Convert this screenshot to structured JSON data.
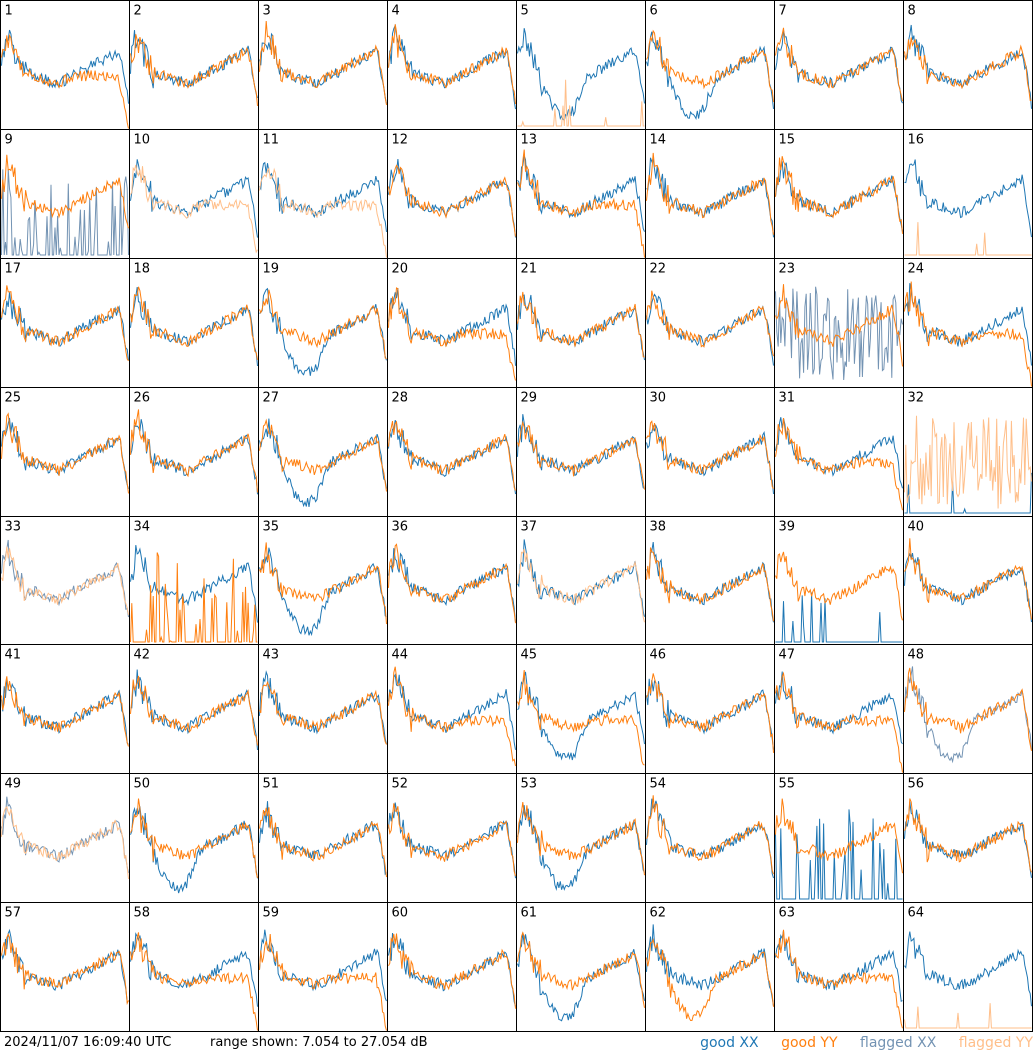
{
  "footer": {
    "timestamp": "2024/11/07 16:09:40 UTC",
    "range_text": "range shown: 7.054 to 27.054 dB"
  },
  "legend": {
    "good_xx": "good XX",
    "good_yy": "good YY",
    "flagged_xx": "flagged XX",
    "flagged_yy": "flagged YY"
  },
  "colors": {
    "good_xx": "#1f77b4",
    "good_yy": "#ff7f0e",
    "flagged_xx": "#7393b3",
    "flagged_yy": "#ffbf8a"
  },
  "chart_data": {
    "type": "line",
    "grid": {
      "rows": 8,
      "cols": 8
    },
    "y_range_db": [
      7.054,
      27.054
    ],
    "panels": [
      {
        "label": "1",
        "xx": "good",
        "yy": "good",
        "xx_shape": "normal",
        "yy_shape": "rolloff"
      },
      {
        "label": "2",
        "xx": "good",
        "yy": "good",
        "xx_shape": "normal",
        "yy_shape": "normal"
      },
      {
        "label": "3",
        "xx": "good",
        "yy": "good",
        "xx_shape": "normal",
        "yy_shape": "normal"
      },
      {
        "label": "4",
        "xx": "good",
        "yy": "good",
        "xx_shape": "normal",
        "yy_shape": "normal"
      },
      {
        "label": "5",
        "xx": "good",
        "yy": "flagged",
        "xx_shape": "dip",
        "yy_shape": "flat"
      },
      {
        "label": "6",
        "xx": "good",
        "yy": "good",
        "xx_shape": "dip",
        "yy_shape": "normal"
      },
      {
        "label": "7",
        "xx": "good",
        "yy": "good",
        "xx_shape": "normal",
        "yy_shape": "normal"
      },
      {
        "label": "8",
        "xx": "good",
        "yy": "good",
        "xx_shape": "normal",
        "yy_shape": "normal"
      },
      {
        "label": "9",
        "xx": "flagged",
        "yy": "good",
        "xx_shape": "spiky",
        "yy_shape": "normal"
      },
      {
        "label": "10",
        "xx": "good",
        "yy": "flagged",
        "xx_shape": "normal",
        "yy_shape": "rolloff"
      },
      {
        "label": "11",
        "xx": "good",
        "yy": "flagged",
        "xx_shape": "normal",
        "yy_shape": "rolloff"
      },
      {
        "label": "12",
        "xx": "good",
        "yy": "good",
        "xx_shape": "normal",
        "yy_shape": "normal"
      },
      {
        "label": "13",
        "xx": "good",
        "yy": "good",
        "xx_shape": "normal",
        "yy_shape": "rolloff"
      },
      {
        "label": "14",
        "xx": "good",
        "yy": "good",
        "xx_shape": "normal",
        "yy_shape": "normal"
      },
      {
        "label": "15",
        "xx": "good",
        "yy": "good",
        "xx_shape": "normal",
        "yy_shape": "normal"
      },
      {
        "label": "16",
        "xx": "good",
        "yy": "flagged",
        "xx_shape": "normal",
        "yy_shape": "flat"
      },
      {
        "label": "17",
        "xx": "good",
        "yy": "good",
        "xx_shape": "normal",
        "yy_shape": "normal"
      },
      {
        "label": "18",
        "xx": "good",
        "yy": "good",
        "xx_shape": "normal",
        "yy_shape": "normal"
      },
      {
        "label": "19",
        "xx": "good",
        "yy": "good",
        "xx_shape": "dip",
        "yy_shape": "normal"
      },
      {
        "label": "20",
        "xx": "good",
        "yy": "good",
        "xx_shape": "normal",
        "yy_shape": "rolloff"
      },
      {
        "label": "21",
        "xx": "good",
        "yy": "good",
        "xx_shape": "normal",
        "yy_shape": "normal"
      },
      {
        "label": "22",
        "xx": "good",
        "yy": "good",
        "xx_shape": "normal",
        "yy_shape": "normal"
      },
      {
        "label": "23",
        "xx": "flagged",
        "yy": "good",
        "xx_shape": "noise",
        "yy_shape": "normal"
      },
      {
        "label": "24",
        "xx": "good",
        "yy": "good",
        "xx_shape": "normal",
        "yy_shape": "rolloff"
      },
      {
        "label": "25",
        "xx": "good",
        "yy": "good",
        "xx_shape": "normal",
        "yy_shape": "normal"
      },
      {
        "label": "26",
        "xx": "good",
        "yy": "good",
        "xx_shape": "normal",
        "yy_shape": "normal"
      },
      {
        "label": "27",
        "xx": "good",
        "yy": "good",
        "xx_shape": "dip",
        "yy_shape": "normal"
      },
      {
        "label": "28",
        "xx": "good",
        "yy": "good",
        "xx_shape": "normal",
        "yy_shape": "normal"
      },
      {
        "label": "29",
        "xx": "good",
        "yy": "good",
        "xx_shape": "normal",
        "yy_shape": "normal"
      },
      {
        "label": "30",
        "xx": "good",
        "yy": "good",
        "xx_shape": "normal",
        "yy_shape": "normal"
      },
      {
        "label": "31",
        "xx": "good",
        "yy": "good",
        "xx_shape": "normal",
        "yy_shape": "rolloff"
      },
      {
        "label": "32",
        "xx": "good",
        "yy": "flagged",
        "xx_shape": "flat",
        "yy_shape": "noise"
      },
      {
        "label": "33",
        "xx": "flagged",
        "yy": "flagged",
        "xx_shape": "normal",
        "yy_shape": "normal"
      },
      {
        "label": "34",
        "xx": "good",
        "yy": "good",
        "xx_shape": "normal",
        "yy_shape": "spiky"
      },
      {
        "label": "35",
        "xx": "good",
        "yy": "good",
        "xx_shape": "dip",
        "yy_shape": "normal"
      },
      {
        "label": "36",
        "xx": "good",
        "yy": "good",
        "xx_shape": "normal",
        "yy_shape": "normal"
      },
      {
        "label": "37",
        "xx": "good",
        "yy": "flagged",
        "xx_shape": "normal",
        "yy_shape": "normal"
      },
      {
        "label": "38",
        "xx": "good",
        "yy": "good",
        "xx_shape": "normal",
        "yy_shape": "normal"
      },
      {
        "label": "39",
        "xx": "good",
        "yy": "good",
        "xx_shape": "flat",
        "yy_shape": "normal"
      },
      {
        "label": "40",
        "xx": "good",
        "yy": "good",
        "xx_shape": "normal",
        "yy_shape": "normal"
      },
      {
        "label": "41",
        "xx": "good",
        "yy": "good",
        "xx_shape": "normal",
        "yy_shape": "normal"
      },
      {
        "label": "42",
        "xx": "good",
        "yy": "good",
        "xx_shape": "normal",
        "yy_shape": "normal"
      },
      {
        "label": "43",
        "xx": "good",
        "yy": "good",
        "xx_shape": "normal",
        "yy_shape": "normal"
      },
      {
        "label": "44",
        "xx": "good",
        "yy": "good",
        "xx_shape": "normal",
        "yy_shape": "rolloff"
      },
      {
        "label": "45",
        "xx": "good",
        "yy": "good",
        "xx_shape": "dip",
        "yy_shape": "rolloff"
      },
      {
        "label": "46",
        "xx": "good",
        "yy": "good",
        "xx_shape": "normal",
        "yy_shape": "normal"
      },
      {
        "label": "47",
        "xx": "good",
        "yy": "good",
        "xx_shape": "normal",
        "yy_shape": "rolloff"
      },
      {
        "label": "48",
        "xx": "flagged",
        "yy": "good",
        "xx_shape": "dip",
        "yy_shape": "normal"
      },
      {
        "label": "49",
        "xx": "flagged",
        "yy": "flagged",
        "xx_shape": "normal",
        "yy_shape": "normal"
      },
      {
        "label": "50",
        "xx": "good",
        "yy": "good",
        "xx_shape": "dip",
        "yy_shape": "normal"
      },
      {
        "label": "51",
        "xx": "good",
        "yy": "good",
        "xx_shape": "normal",
        "yy_shape": "normal"
      },
      {
        "label": "52",
        "xx": "good",
        "yy": "good",
        "xx_shape": "normal",
        "yy_shape": "normal"
      },
      {
        "label": "53",
        "xx": "good",
        "yy": "good",
        "xx_shape": "dip",
        "yy_shape": "normal"
      },
      {
        "label": "54",
        "xx": "good",
        "yy": "good",
        "xx_shape": "normal",
        "yy_shape": "normal"
      },
      {
        "label": "55",
        "xx": "good",
        "yy": "good",
        "xx_shape": "spiky",
        "yy_shape": "normal"
      },
      {
        "label": "56",
        "xx": "good",
        "yy": "good",
        "xx_shape": "normal",
        "yy_shape": "normal"
      },
      {
        "label": "57",
        "xx": "good",
        "yy": "good",
        "xx_shape": "normal",
        "yy_shape": "normal"
      },
      {
        "label": "58",
        "xx": "good",
        "yy": "good",
        "xx_shape": "normal",
        "yy_shape": "rolloff"
      },
      {
        "label": "59",
        "xx": "good",
        "yy": "good",
        "xx_shape": "normal",
        "yy_shape": "rolloff"
      },
      {
        "label": "60",
        "xx": "good",
        "yy": "good",
        "xx_shape": "normal",
        "yy_shape": "normal"
      },
      {
        "label": "61",
        "xx": "good",
        "yy": "good",
        "xx_shape": "dip",
        "yy_shape": "normal"
      },
      {
        "label": "62",
        "xx": "good",
        "yy": "good",
        "xx_shape": "normal",
        "yy_shape": "dip"
      },
      {
        "label": "63",
        "xx": "good",
        "yy": "good",
        "xx_shape": "normal",
        "yy_shape": "rolloff"
      },
      {
        "label": "64",
        "xx": "good",
        "yy": "flagged",
        "xx_shape": "normal",
        "yy_shape": "flat"
      }
    ]
  }
}
